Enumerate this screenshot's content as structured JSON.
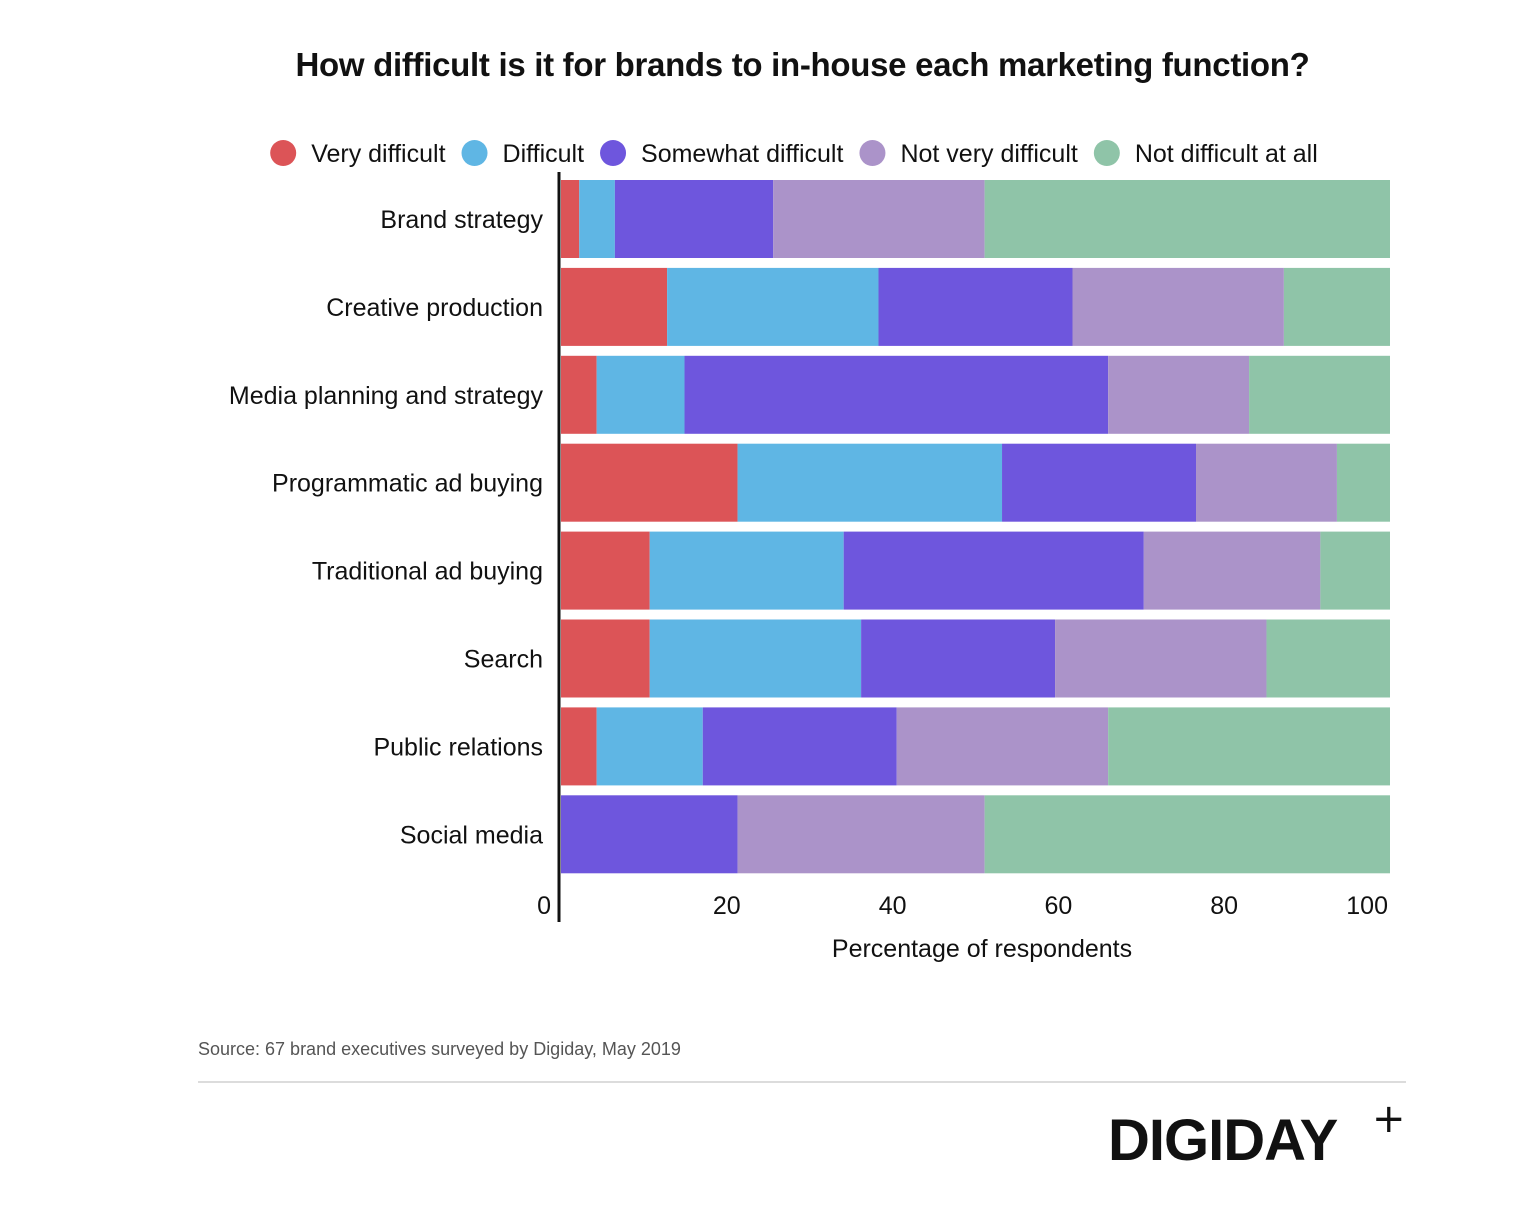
{
  "chart_data": {
    "type": "bar",
    "orientation": "horizontal",
    "stacked": true,
    "title": "How difficult is it for brands to in-house each marketing function?",
    "xlabel": "Percentage of respondents",
    "ylabel": "",
    "xlim": [
      0,
      100
    ],
    "x_ticks": [
      0,
      20,
      40,
      60,
      80,
      100
    ],
    "legend_position": "top",
    "grid": false,
    "categories": [
      "Brand strategy",
      "Creative production",
      "Media planning and strategy",
      "Programmatic ad buying",
      "Traditional ad buying",
      "Search",
      "Public relations",
      "Social media"
    ],
    "series": [
      {
        "name": "Very difficult",
        "color": "#dc5457",
        "values": [
          2.2,
          12.8,
          4.3,
          21.3,
          10.7,
          10.7,
          4.3,
          0
        ]
      },
      {
        "name": "Difficult",
        "color": "#5fb6e4",
        "values": [
          4.3,
          25.5,
          10.6,
          31.9,
          23.4,
          25.5,
          12.8,
          0
        ]
      },
      {
        "name": "Somewhat difficult",
        "color": "#6e56dd",
        "values": [
          19.1,
          23.4,
          51.1,
          23.4,
          36.2,
          23.4,
          23.4,
          21.3
        ]
      },
      {
        "name": "Not very difficult",
        "color": "#ab93c9",
        "values": [
          25.5,
          25.5,
          17.0,
          17.0,
          21.3,
          25.5,
          25.5,
          29.8
        ]
      },
      {
        "name": "Not difficult at all",
        "color": "#8fc4a8",
        "values": [
          48.9,
          12.8,
          17.0,
          6.4,
          8.4,
          14.9,
          34.0,
          48.9
        ]
      }
    ]
  },
  "footer": {
    "source": "Source: 67 brand executives surveyed by Digiday, May 2019",
    "logo_text": "DIGIDAY",
    "logo_mark": "+"
  }
}
